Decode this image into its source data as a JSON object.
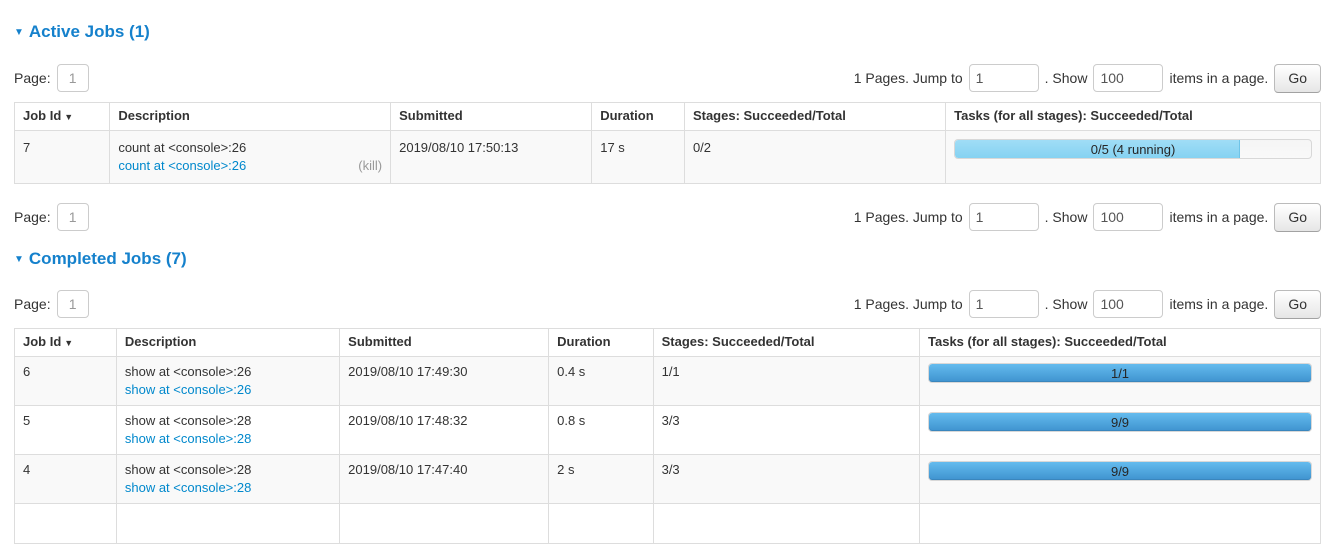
{
  "pagination": {
    "page_label": "Page:",
    "page_value": "1",
    "pages_text": "1 Pages. Jump to",
    "jump_value": "1",
    "show_text": ". Show",
    "show_value": "100",
    "items_text": "items in a page.",
    "go_label": "Go"
  },
  "active_jobs": {
    "title": "Active Jobs (1)",
    "collapse_icon": "▼",
    "headers": [
      {
        "label": "Job Id",
        "sort_indicator": "▼"
      },
      {
        "label": "Description"
      },
      {
        "label": "Submitted"
      },
      {
        "label": "Duration"
      },
      {
        "label": "Stages: Succeeded/Total"
      },
      {
        "label": "Tasks (for all stages): Succeeded/Total"
      }
    ],
    "rows": [
      {
        "job_id": "7",
        "description": "count at <console>:26",
        "description_link": "count at <console>:26",
        "kill_link": "(kill)",
        "submitted": "2019/08/10 17:50:13",
        "duration": "17 s",
        "stages": "0/2",
        "tasks_bar": {
          "label": "0/5 (4 running)",
          "percent": 80,
          "style": "running"
        }
      }
    ]
  },
  "completed_jobs": {
    "title": "Completed Jobs (7)",
    "collapse_icon": "▼",
    "headers": [
      {
        "label": "Job Id",
        "sort_indicator": "▼"
      },
      {
        "label": "Description"
      },
      {
        "label": "Submitted"
      },
      {
        "label": "Duration"
      },
      {
        "label": "Stages: Succeeded/Total"
      },
      {
        "label": "Tasks (for all stages): Succeeded/Total"
      }
    ],
    "rows": [
      {
        "job_id": "6",
        "description": "show at <console>:26",
        "description_link": "show at <console>:26",
        "submitted": "2019/08/10 17:49:30",
        "duration": "0.4 s",
        "stages": "1/1",
        "tasks_bar": {
          "label": "1/1",
          "percent": 100,
          "style": "succeeded"
        }
      },
      {
        "job_id": "5",
        "description": "show at <console>:28",
        "description_link": "show at <console>:28",
        "submitted": "2019/08/10 17:48:32",
        "duration": "0.8 s",
        "stages": "3/3",
        "tasks_bar": {
          "label": "9/9",
          "percent": 100,
          "style": "succeeded"
        }
      },
      {
        "job_id": "4",
        "description": "show at <console>:28",
        "description_link": "show at <console>:28",
        "submitted": "2019/08/10 17:47:40",
        "duration": "2 s",
        "stages": "3/3",
        "tasks_bar": {
          "label": "9/9",
          "percent": 100,
          "style": "succeeded"
        }
      }
    ],
    "partial_row": true
  },
  "colors": {
    "heading_blue": "#1581cc",
    "link_blue": "#0088cc",
    "bar_blue_top": "#64bbee",
    "bar_blue_bottom": "#3f93cf",
    "bar_running_blue": "#8ed9f5",
    "table_border": "#dddddd",
    "row_stripe": "#f9f9f9"
  }
}
